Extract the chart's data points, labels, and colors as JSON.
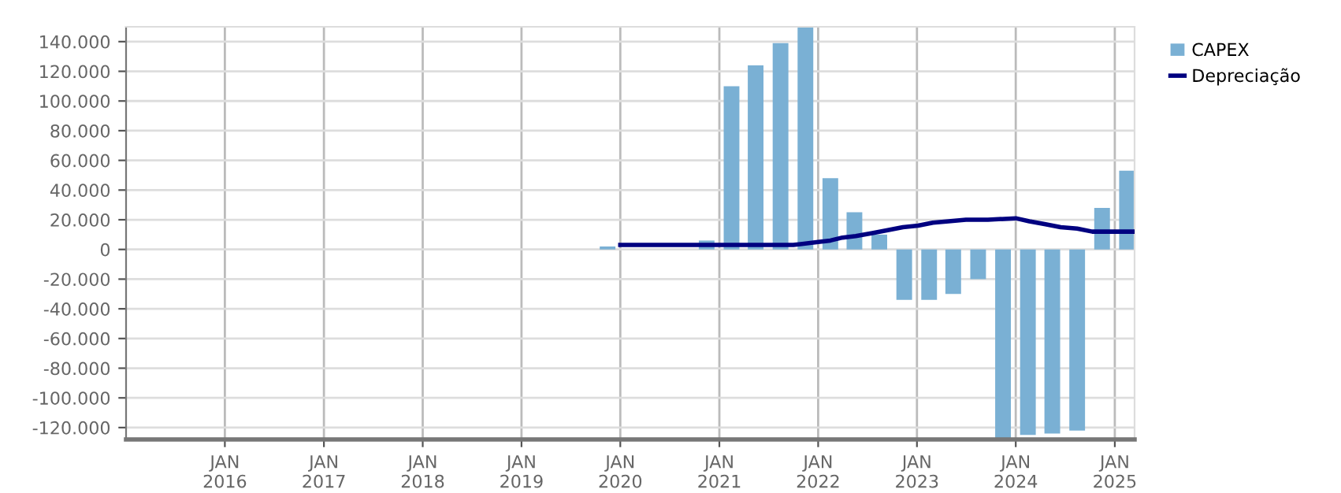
{
  "chart_data": {
    "type": "bar",
    "xlim": [
      "2015-01-01",
      "2025-03-15"
    ],
    "ylim": [
      -128000,
      150000
    ],
    "xticks": [
      {
        "value": "2016-01-01",
        "label": "JAN\n2016"
      },
      {
        "value": "2017-01-01",
        "label": "JAN\n2017"
      },
      {
        "value": "2018-01-01",
        "label": "JAN\n2018"
      },
      {
        "value": "2019-01-01",
        "label": "JAN\n2019"
      },
      {
        "value": "2020-01-01",
        "label": "JAN\n2020"
      },
      {
        "value": "2021-01-01",
        "label": "JAN\n2021"
      },
      {
        "value": "2022-01-01",
        "label": "JAN\n2022"
      },
      {
        "value": "2023-01-01",
        "label": "JAN\n2023"
      },
      {
        "value": "2024-01-01",
        "label": "JAN\n2024"
      },
      {
        "value": "2025-01-01",
        "label": "JAN\n2025"
      }
    ],
    "yticks": [
      {
        "value": -120000,
        "label": "-120.000"
      },
      {
        "value": -100000,
        "label": "-100.000"
      },
      {
        "value": -80000,
        "label": "-80.000"
      },
      {
        "value": -60000,
        "label": "-60.000"
      },
      {
        "value": -40000,
        "label": "-40.000"
      },
      {
        "value": -20000,
        "label": "-20.000"
      },
      0,
      {
        "value": 20000,
        "label": "20.000"
      },
      {
        "value": 40000,
        "label": "40.000"
      },
      {
        "value": 60000,
        "label": "60.000"
      },
      {
        "value": 80000,
        "label": "80.000"
      },
      {
        "value": 100000,
        "label": "100.000"
      },
      {
        "value": 120000,
        "label": "120.000"
      },
      {
        "value": 140000,
        "label": "140.000"
      }
    ],
    "grid": true,
    "legend": "top right",
    "series": [
      {
        "name": "CAPEX",
        "color": "#7ab0d4",
        "x": [
          "2019-11-15",
          "2020-11-15",
          "2021-02-15",
          "2021-05-15",
          "2021-08-15",
          "2021-11-15",
          "2022-02-15",
          "2022-05-15",
          "2022-08-15",
          "2022-11-15",
          "2023-02-15",
          "2023-05-15",
          "2023-08-15",
          "2023-11-15",
          "2024-02-15",
          "2024-05-15",
          "2024-08-15",
          "2024-11-15",
          "2025-02-15"
        ],
        "values": [
          2000,
          6000,
          110000,
          124000,
          139000,
          150000,
          48000,
          25000,
          10000,
          -34000,
          -34000,
          -30000,
          -20000,
          -128000,
          -125000,
          -124000,
          -122000,
          28000,
          53000
        ]
      },
      {
        "name": "Depreciação",
        "type": "line",
        "color": "#000080",
        "x": [
          "2020-01-01",
          "2021-10-01",
          "2022-01-01",
          "2022-02-15",
          "2022-04-01",
          "2022-05-20",
          "2022-07-20",
          "2022-09-15",
          "2022-11-10",
          "2023-01-05",
          "2023-03-01",
          "2023-04-28",
          "2023-07-01",
          "2023-09-20",
          "2024-01-01",
          "2024-02-20",
          "2024-04-20",
          "2024-06-15",
          "2024-08-15",
          "2024-10-10",
          "2025-03-15"
        ],
        "values": [
          3000,
          3000,
          5000,
          6000,
          8000,
          9000,
          11000,
          13000,
          15000,
          16000,
          18000,
          19000,
          20000,
          20000,
          21000,
          19000,
          17000,
          15000,
          14000,
          12000,
          12000
        ]
      }
    ]
  }
}
